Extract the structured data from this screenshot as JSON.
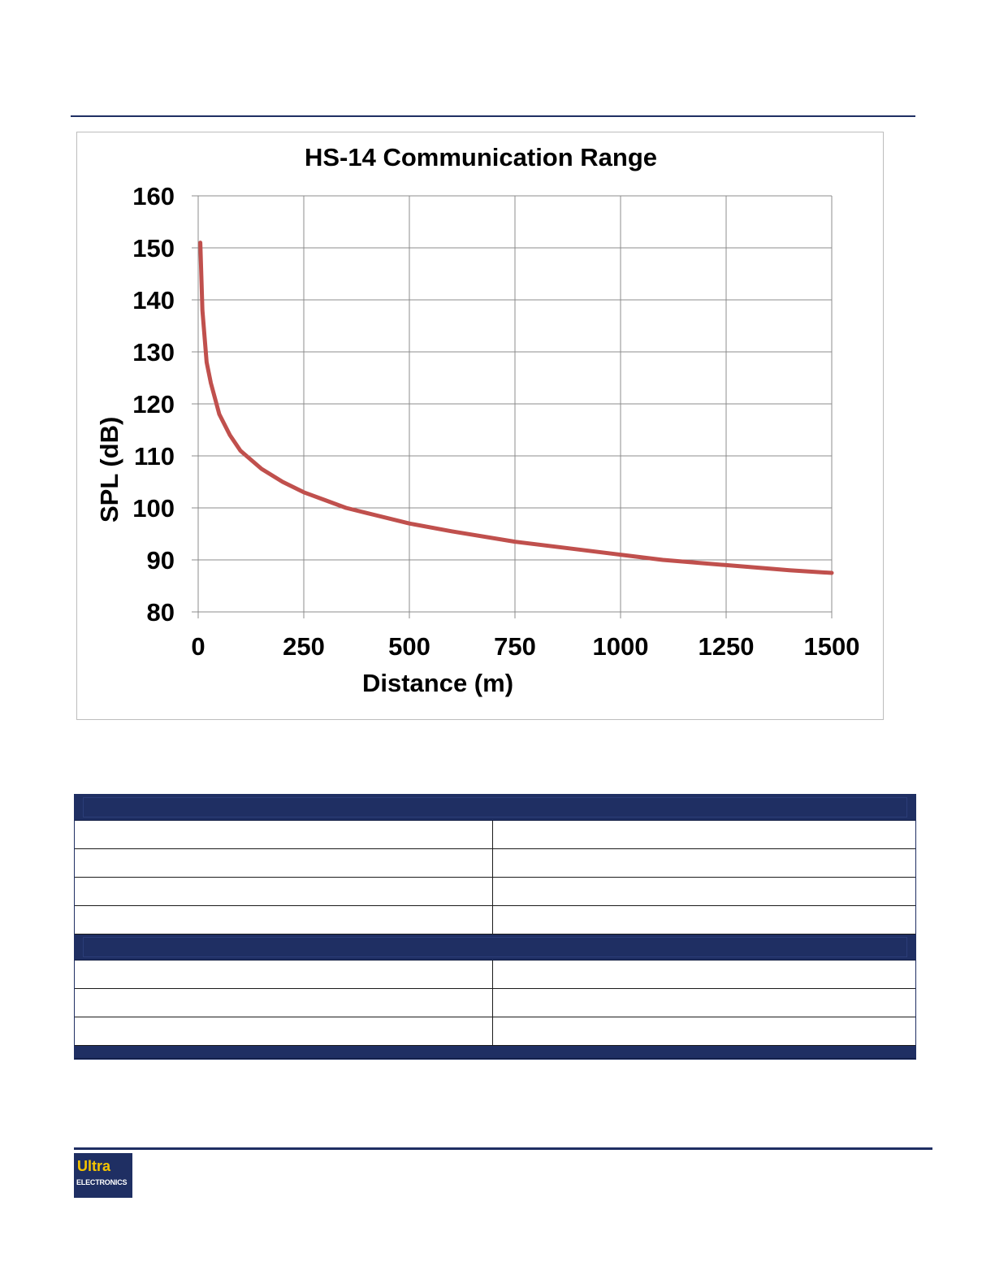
{
  "chart_data": {
    "type": "line",
    "title": "HS-14 Communication Range",
    "xlabel": "Distance  (m)",
    "ylabel": "SPL (dB)",
    "xlim": [
      0,
      1500
    ],
    "ylim": [
      80,
      160
    ],
    "xticks": [
      "0",
      "250",
      "500",
      "750",
      "1000",
      "1250",
      "1500"
    ],
    "yticks": [
      "80",
      "90",
      "100",
      "110",
      "120",
      "130",
      "140",
      "150",
      "160"
    ],
    "grid": true,
    "series": [
      {
        "color": "#c0504d",
        "x": [
          5,
          10,
          20,
          30,
          50,
          75,
          100,
          150,
          200,
          250,
          300,
          350,
          400,
          500,
          600,
          750,
          900,
          1000,
          1100,
          1250,
          1400,
          1500
        ],
        "y": [
          151,
          138,
          128,
          124,
          118,
          114,
          111,
          107.5,
          105,
          103,
          101.5,
          100,
          99,
          97,
          95.5,
          93.5,
          92,
          91,
          90,
          89,
          88,
          87.5
        ]
      }
    ]
  },
  "logo": {
    "line1": "Ultra",
    "line2": "ELECTRONICS"
  }
}
